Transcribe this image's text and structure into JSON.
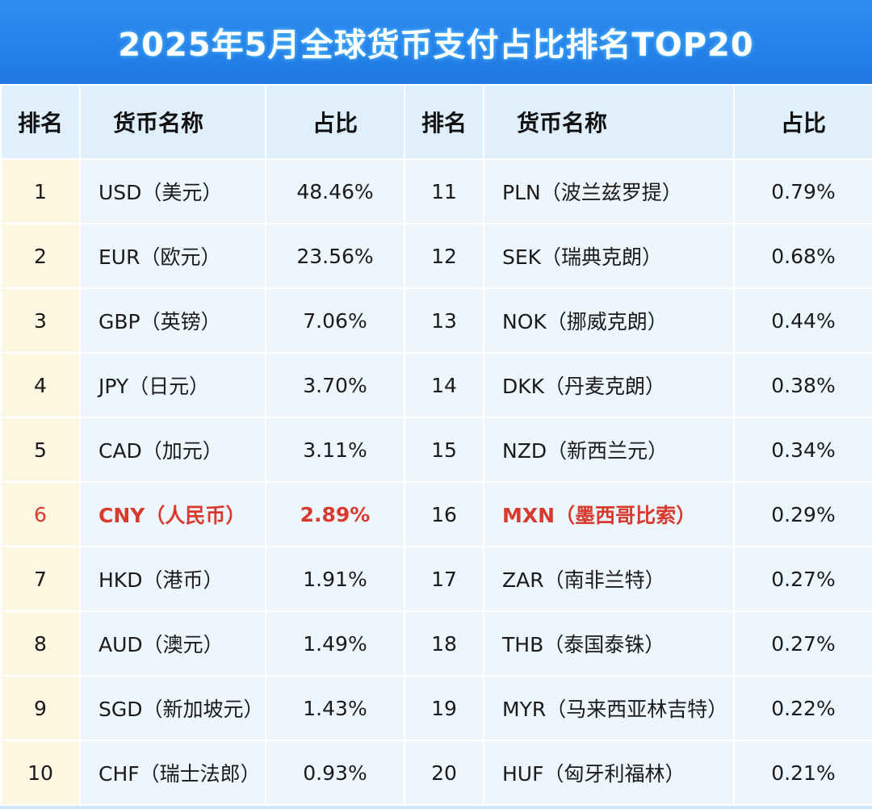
{
  "title": "2025年5月全球货币支付占比排名TOP20",
  "headers": {
    "rank": "排名",
    "name": "货币名称",
    "share": "占比"
  },
  "colors": {
    "title_bg": "#1f78e4",
    "header_bg": "#dff0fc",
    "cell_bg": "#edf6fd",
    "rank_bg": "#fdf6e0",
    "highlight": "#d83a2e"
  },
  "chart_data": {
    "type": "table",
    "title": "2025年5月全球货币支付占比排名TOP20",
    "columns": [
      "排名",
      "货币名称",
      "占比"
    ],
    "highlight_rank": 6,
    "rows": [
      {
        "rank": "1",
        "name": "USD（美元）",
        "share": "48.46%"
      },
      {
        "rank": "2",
        "name": "EUR（欧元）",
        "share": "23.56%"
      },
      {
        "rank": "3",
        "name": "GBP（英镑）",
        "share": "7.06%"
      },
      {
        "rank": "4",
        "name": "JPY（日元）",
        "share": "3.70%"
      },
      {
        "rank": "5",
        "name": "CAD（加元）",
        "share": "3.11%"
      },
      {
        "rank": "6",
        "name": "CNY（人民币）",
        "share": "2.89%"
      },
      {
        "rank": "7",
        "name": "HKD（港币）",
        "share": "1.91%"
      },
      {
        "rank": "8",
        "name": "AUD（澳元）",
        "share": "1.49%"
      },
      {
        "rank": "9",
        "name": "SGD（新加坡元）",
        "share": "1.43%"
      },
      {
        "rank": "10",
        "name": "CHF（瑞士法郎）",
        "share": "0.93%"
      },
      {
        "rank": "11",
        "name": "PLN（波兰兹罗提）",
        "share": "0.79%"
      },
      {
        "rank": "12",
        "name": "SEK（瑞典克朗）",
        "share": "0.68%"
      },
      {
        "rank": "13",
        "name": "NOK（挪威克朗）",
        "share": "0.44%"
      },
      {
        "rank": "14",
        "name": "DKK（丹麦克朗）",
        "share": "0.38%"
      },
      {
        "rank": "15",
        "name": "NZD（新西兰元）",
        "share": "0.34%"
      },
      {
        "rank": "16",
        "name": "MXN（墨西哥比索）",
        "share": "0.29%"
      },
      {
        "rank": "17",
        "name": "ZAR（南非兰特）",
        "share": "0.27%"
      },
      {
        "rank": "18",
        "name": "THB（泰国泰铢）",
        "share": "0.27%"
      },
      {
        "rank": "19",
        "name": "MYR（马来西亚林吉特）",
        "share": "0.22%"
      },
      {
        "rank": "20",
        "name": "HUF（匈牙利福林）",
        "share": "0.21%"
      }
    ]
  }
}
